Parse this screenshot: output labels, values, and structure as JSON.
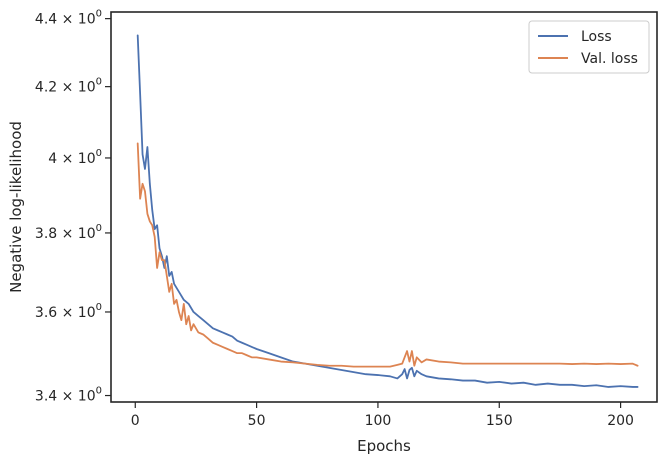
{
  "chart_data": {
    "type": "line",
    "title": "",
    "xlabel": "Epochs",
    "ylabel": "Negative log-likelihood",
    "yscale": "log",
    "xlim": [
      -10,
      215
    ],
    "ylim": [
      3.385,
      4.42
    ],
    "xticks": [
      {
        "value": 0,
        "label": "0"
      },
      {
        "value": 50,
        "label": "50"
      },
      {
        "value": 100,
        "label": "100"
      },
      {
        "value": 150,
        "label": "150"
      },
      {
        "value": 200,
        "label": "200"
      }
    ],
    "yticks": [
      {
        "value": 3.4,
        "mantissa": "3.4",
        "base": "10",
        "exp": "0"
      },
      {
        "value": 3.6,
        "mantissa": "3.6",
        "base": "10",
        "exp": "0"
      },
      {
        "value": 3.8,
        "mantissa": "3.8",
        "base": "10",
        "exp": "0"
      },
      {
        "value": 4.0,
        "mantissa": "4",
        "base": "10",
        "exp": "0"
      },
      {
        "value": 4.2,
        "mantissa": "4.2",
        "base": "10",
        "exp": "0"
      },
      {
        "value": 4.4,
        "mantissa": "4.4",
        "base": "10",
        "exp": "0"
      }
    ],
    "grid": false,
    "legend_position": "top-right",
    "series": [
      {
        "name": "Loss",
        "color": "#4c72b0",
        "points": [
          [
            1,
            4.35
          ],
          [
            2,
            4.18
          ],
          [
            3,
            4.01
          ],
          [
            4,
            3.97
          ],
          [
            5,
            4.03
          ],
          [
            6,
            3.93
          ],
          [
            7,
            3.86
          ],
          [
            8,
            3.81
          ],
          [
            9,
            3.82
          ],
          [
            10,
            3.76
          ],
          [
            11,
            3.74
          ],
          [
            12,
            3.71
          ],
          [
            13,
            3.74
          ],
          [
            14,
            3.69
          ],
          [
            15,
            3.7
          ],
          [
            16,
            3.67
          ],
          [
            17,
            3.66
          ],
          [
            18,
            3.65
          ],
          [
            20,
            3.63
          ],
          [
            22,
            3.62
          ],
          [
            24,
            3.6
          ],
          [
            26,
            3.59
          ],
          [
            28,
            3.58
          ],
          [
            30,
            3.57
          ],
          [
            32,
            3.56
          ],
          [
            34,
            3.555
          ],
          [
            36,
            3.55
          ],
          [
            38,
            3.545
          ],
          [
            40,
            3.54
          ],
          [
            42,
            3.53
          ],
          [
            44,
            3.525
          ],
          [
            46,
            3.52
          ],
          [
            48,
            3.515
          ],
          [
            50,
            3.51
          ],
          [
            55,
            3.5
          ],
          [
            60,
            3.49
          ],
          [
            65,
            3.48
          ],
          [
            70,
            3.475
          ],
          [
            75,
            3.47
          ],
          [
            80,
            3.465
          ],
          [
            85,
            3.46
          ],
          [
            90,
            3.455
          ],
          [
            95,
            3.45
          ],
          [
            100,
            3.448
          ],
          [
            105,
            3.445
          ],
          [
            108,
            3.44
          ],
          [
            110,
            3.45
          ],
          [
            111,
            3.462
          ],
          [
            112,
            3.44
          ],
          [
            113,
            3.46
          ],
          [
            114,
            3.465
          ],
          [
            115,
            3.445
          ],
          [
            116,
            3.458
          ],
          [
            118,
            3.45
          ],
          [
            120,
            3.445
          ],
          [
            125,
            3.44
          ],
          [
            130,
            3.438
          ],
          [
            135,
            3.435
          ],
          [
            140,
            3.435
          ],
          [
            145,
            3.43
          ],
          [
            150,
            3.432
          ],
          [
            155,
            3.428
          ],
          [
            160,
            3.43
          ],
          [
            165,
            3.425
          ],
          [
            170,
            3.428
          ],
          [
            175,
            3.425
          ],
          [
            180,
            3.425
          ],
          [
            185,
            3.422
          ],
          [
            190,
            3.424
          ],
          [
            195,
            3.42
          ],
          [
            200,
            3.422
          ],
          [
            205,
            3.42
          ],
          [
            207,
            3.42
          ]
        ]
      },
      {
        "name": "Val. loss",
        "color": "#dd8452",
        "points": [
          [
            1,
            4.04
          ],
          [
            2,
            3.89
          ],
          [
            3,
            3.93
          ],
          [
            4,
            3.91
          ],
          [
            5,
            3.85
          ],
          [
            6,
            3.83
          ],
          [
            7,
            3.82
          ],
          [
            8,
            3.79
          ],
          [
            9,
            3.71
          ],
          [
            10,
            3.75
          ],
          [
            11,
            3.73
          ],
          [
            12,
            3.73
          ],
          [
            13,
            3.69
          ],
          [
            14,
            3.65
          ],
          [
            15,
            3.67
          ],
          [
            16,
            3.62
          ],
          [
            17,
            3.63
          ],
          [
            18,
            3.6
          ],
          [
            19,
            3.58
          ],
          [
            20,
            3.62
          ],
          [
            21,
            3.57
          ],
          [
            22,
            3.59
          ],
          [
            23,
            3.555
          ],
          [
            24,
            3.57
          ],
          [
            26,
            3.55
          ],
          [
            28,
            3.545
          ],
          [
            30,
            3.535
          ],
          [
            32,
            3.525
          ],
          [
            34,
            3.52
          ],
          [
            36,
            3.515
          ],
          [
            38,
            3.51
          ],
          [
            40,
            3.505
          ],
          [
            42,
            3.5
          ],
          [
            44,
            3.5
          ],
          [
            46,
            3.495
          ],
          [
            48,
            3.49
          ],
          [
            50,
            3.49
          ],
          [
            55,
            3.485
          ],
          [
            60,
            3.48
          ],
          [
            65,
            3.478
          ],
          [
            70,
            3.475
          ],
          [
            75,
            3.472
          ],
          [
            80,
            3.47
          ],
          [
            85,
            3.47
          ],
          [
            90,
            3.468
          ],
          [
            95,
            3.468
          ],
          [
            100,
            3.468
          ],
          [
            105,
            3.468
          ],
          [
            108,
            3.472
          ],
          [
            110,
            3.475
          ],
          [
            111,
            3.49
          ],
          [
            112,
            3.505
          ],
          [
            113,
            3.48
          ],
          [
            114,
            3.505
          ],
          [
            115,
            3.47
          ],
          [
            116,
            3.49
          ],
          [
            118,
            3.478
          ],
          [
            120,
            3.485
          ],
          [
            125,
            3.48
          ],
          [
            130,
            3.478
          ],
          [
            135,
            3.475
          ],
          [
            140,
            3.475
          ],
          [
            145,
            3.475
          ],
          [
            150,
            3.475
          ],
          [
            155,
            3.475
          ],
          [
            160,
            3.475
          ],
          [
            165,
            3.475
          ],
          [
            170,
            3.475
          ],
          [
            175,
            3.475
          ],
          [
            180,
            3.474
          ],
          [
            185,
            3.475
          ],
          [
            190,
            3.474
          ],
          [
            195,
            3.475
          ],
          [
            200,
            3.474
          ],
          [
            205,
            3.475
          ],
          [
            207,
            3.47
          ]
        ]
      }
    ]
  }
}
